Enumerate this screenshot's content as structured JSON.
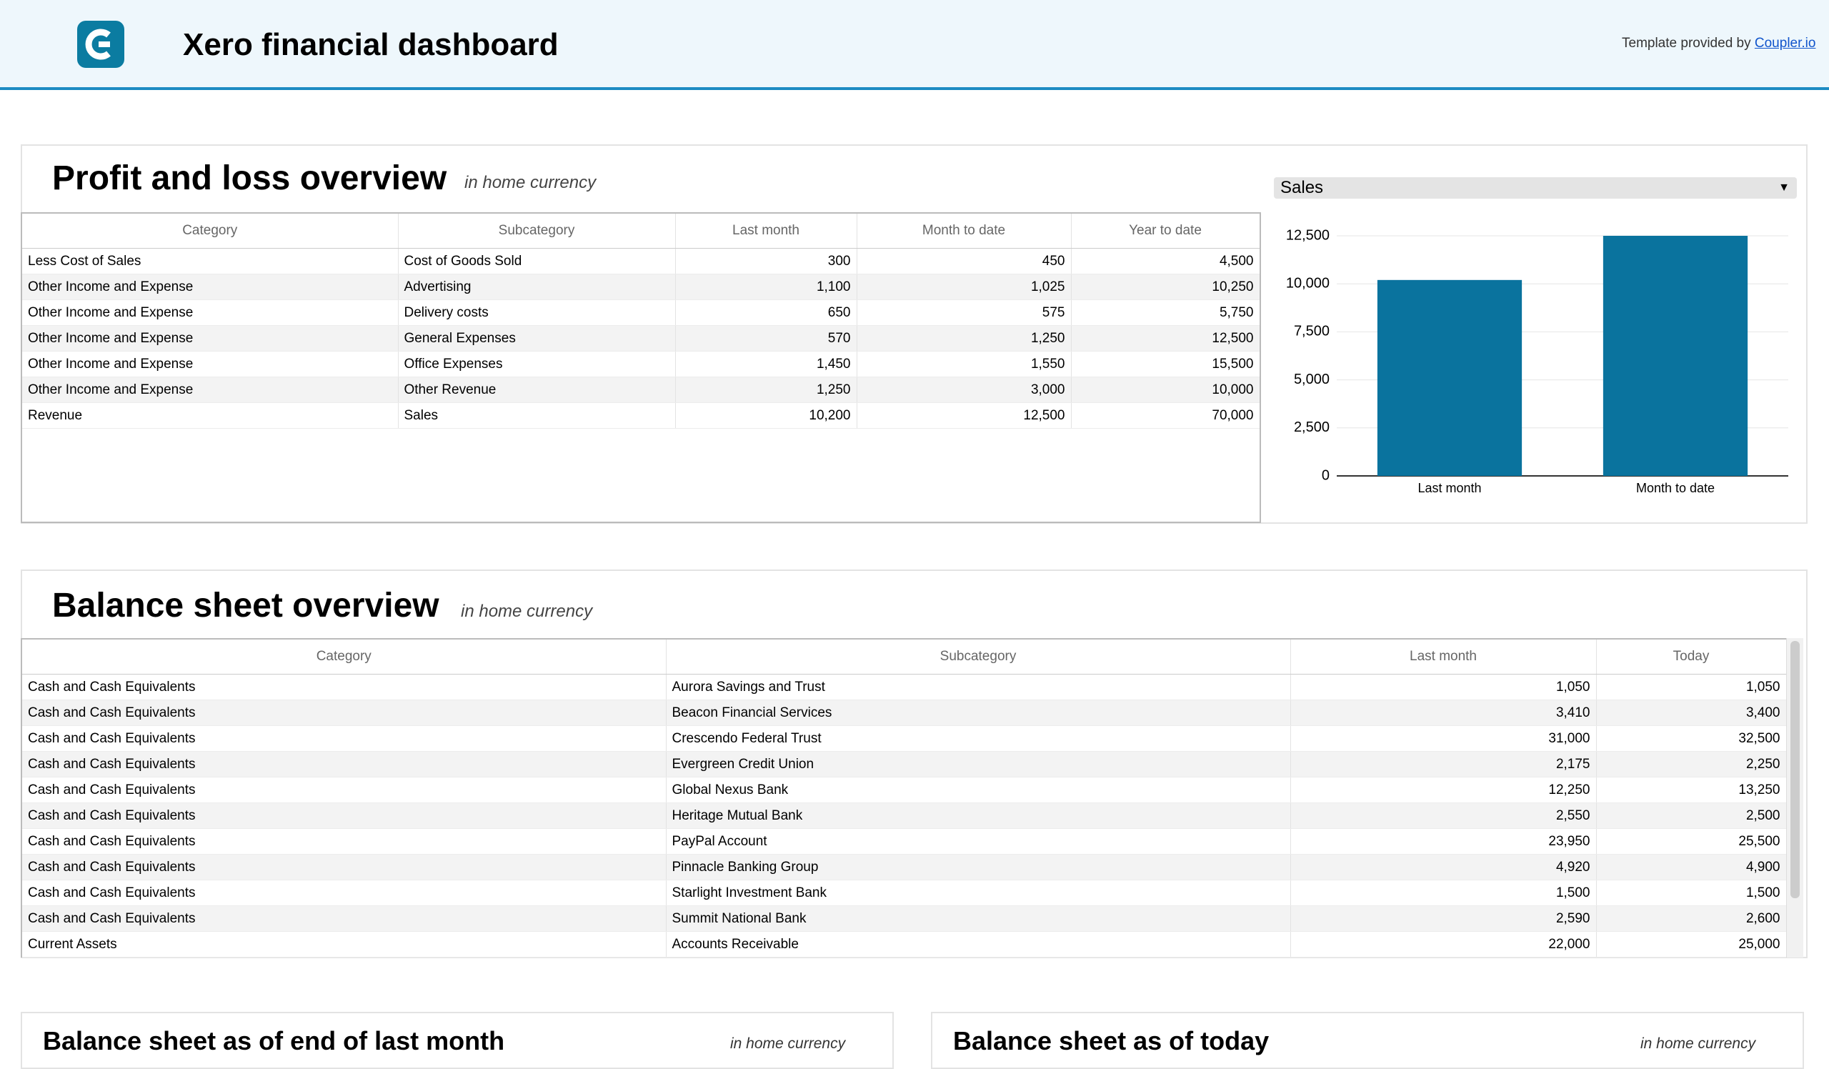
{
  "header": {
    "title": "Xero financial dashboard",
    "credit": "Template provided by",
    "credit_link": "Coupler.io"
  },
  "profit_loss": {
    "title": "Profit and loss overview",
    "subtitle": "in home currency",
    "filter": "Sales",
    "table": {
      "columns": [
        "Category",
        "Subcategory",
        "Last month",
        "Month to date",
        "Year to date"
      ],
      "rows": [
        [
          "Less Cost of Sales",
          "Cost of Goods Sold",
          "300",
          "450",
          "4,500"
        ],
        [
          "Other Income and Expense",
          "Advertising",
          "1,100",
          "1,025",
          "10,250"
        ],
        [
          "Other Income and Expense",
          "Delivery costs",
          "650",
          "575",
          "5,750"
        ],
        [
          "Other Income and Expense",
          "General Expenses",
          "570",
          "1,250",
          "12,500"
        ],
        [
          "Other Income and Expense",
          "Office Expenses",
          "1,450",
          "1,550",
          "15,500"
        ],
        [
          "Other Income and Expense",
          "Other Revenue",
          "1,250",
          "3,000",
          "10,000"
        ],
        [
          "Revenue",
          "Sales",
          "10,200",
          "12,500",
          "70,000"
        ]
      ]
    }
  },
  "chart_data": {
    "type": "bar",
    "categories": [
      "Last month",
      "Month to date"
    ],
    "values": [
      10200,
      12500
    ],
    "color": "#0a739e",
    "ylim": [
      0,
      12500
    ],
    "yticks": [
      0,
      {
        "value": 2500,
        "label": "2,500"
      },
      {
        "value": 5000,
        "label": "5,000"
      },
      {
        "value": 7500,
        "label": "7,500"
      },
      {
        "value": 10000,
        "label": "10,000"
      },
      {
        "value": 12500,
        "label": "12,500"
      }
    ],
    "grid": true
  },
  "balance": {
    "title": "Balance sheet overview",
    "subtitle": "in home currency",
    "table": {
      "columns": [
        "Category",
        "Subcategory",
        "Last month",
        "Today"
      ],
      "rows": [
        [
          "Cash and Cash Equivalents",
          "Aurora Savings and Trust",
          "1,050",
          "1,050"
        ],
        [
          "Cash and Cash Equivalents",
          "Beacon Financial Services",
          "3,410",
          "3,400"
        ],
        [
          "Cash and Cash Equivalents",
          "Crescendo Federal Trust",
          "31,000",
          "32,500"
        ],
        [
          "Cash and Cash Equivalents",
          "Evergreen Credit Union",
          "2,175",
          "2,250"
        ],
        [
          "Cash and Cash Equivalents",
          "Global Nexus Bank",
          "12,250",
          "13,250"
        ],
        [
          "Cash and Cash Equivalents",
          "Heritage Mutual Bank",
          "2,550",
          "2,500"
        ],
        [
          "Cash and Cash Equivalents",
          "PayPal Account",
          "23,950",
          "25,500"
        ],
        [
          "Cash and Cash Equivalents",
          "Pinnacle Banking Group",
          "4,920",
          "4,900"
        ],
        [
          "Cash and Cash Equivalents",
          "Starlight Investment Bank",
          "1,500",
          "1,500"
        ],
        [
          "Cash and Cash Equivalents",
          "Summit National Bank",
          "2,590",
          "2,600"
        ],
        [
          "Current Assets",
          "Accounts Receivable",
          "22,000",
          "25,000"
        ]
      ]
    }
  },
  "last_month": {
    "title": "Balance sheet as of end of last month",
    "subtitle": "in home currency"
  },
  "today": {
    "title": "Balance sheet as of today",
    "subtitle": "in home currency"
  }
}
